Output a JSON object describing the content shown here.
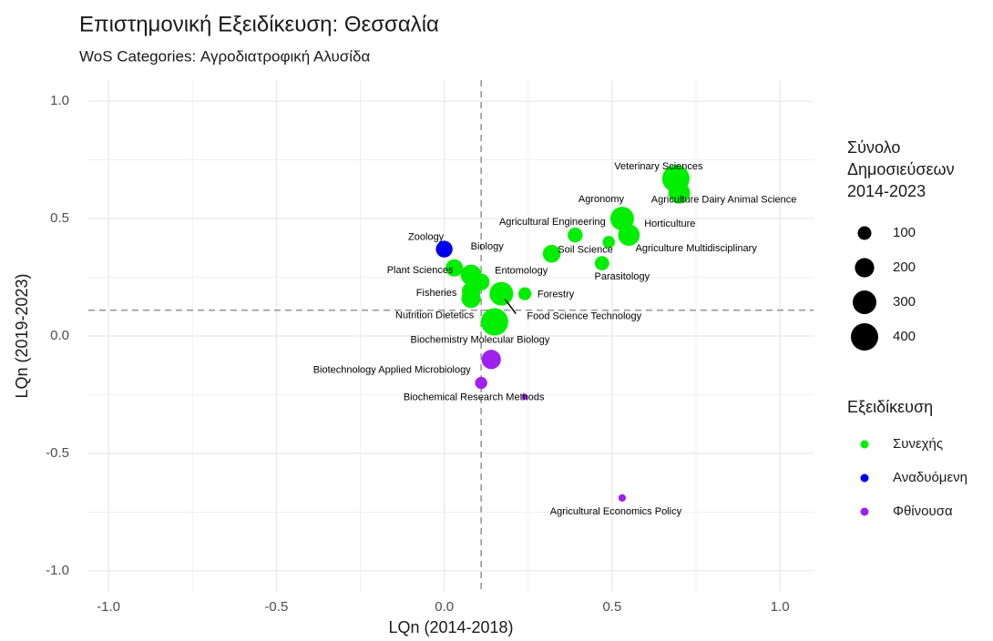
{
  "chart_data": {
    "type": "bubble",
    "title": "Επιστημονική Εξειδίκευση: Θεσσαλία",
    "subtitle": "WoS Categories: Αγροδιατροφική Αλυσίδα",
    "x_label": "LQn (2014-2018)",
    "y_label": "LQn (2019-2023)",
    "xlim": [
      -1.06,
      1.1
    ],
    "ylim": [
      -1.09,
      1.09
    ],
    "xticks": [
      {
        "value": -1,
        "label": "-1.0"
      },
      -0.5,
      {
        "value": 0,
        "label": "0.0"
      },
      0.5,
      {
        "value": 1,
        "label": "1.0"
      }
    ],
    "yticks": [
      {
        "value": -1,
        "label": "-1.0"
      },
      -0.5,
      {
        "value": 0,
        "label": "0.0"
      },
      0.5,
      {
        "value": 1,
        "label": "1.0"
      }
    ],
    "xminor": [
      -0.75,
      -0.25,
      0.25,
      0.75
    ],
    "yminor": [
      -0.75,
      -0.25,
      0.25,
      0.75
    ],
    "grid": true,
    "vline": 0.11,
    "hline": 0.11,
    "series": [
      {
        "name": "Συνεχής",
        "color": "#00ee00",
        "x": [
          0.69,
          0.7,
          0.53,
          0.55,
          0.39,
          0.49,
          0.32,
          0.47,
          0.03,
          0.08,
          0.11,
          0.08,
          0.08,
          0.24,
          0.17,
          0.15
        ],
        "y": [
          0.67,
          0.61,
          0.5,
          0.43,
          0.43,
          0.4,
          0.35,
          0.31,
          0.29,
          0.26,
          0.23,
          0.19,
          0.16,
          0.18,
          0.18,
          0.06
        ],
        "size": [
          400,
          250,
          300,
          250,
          120,
          80,
          170,
          110,
          160,
          230,
          150,
          180,
          200,
          90,
          300,
          400
        ],
        "labels": [
          "Veterinary Sciences",
          "Agriculture Dairy Animal Science",
          "Agronomy",
          "Horticulture",
          "Agricultural Engineering",
          "Agriculture Multidisciplinary",
          "Soil Science",
          "Parasitology",
          "Biology",
          "Plant Sciences",
          "Entomology",
          "Fisheries",
          "Nutrition Dietetics",
          "Forestry",
          "Food Science Technology",
          "Biochemistry Molecular Biology"
        ]
      },
      {
        "name": "Αναδυόμενη",
        "color": "#0000ee",
        "x": [
          0.0
        ],
        "y": [
          0.37
        ],
        "size": [
          150
        ],
        "labels": [
          "Zoology"
        ]
      },
      {
        "name": "Φθίνουσα",
        "color": "#a020f0",
        "x": [
          0.14,
          0.11,
          0.24,
          0.53
        ],
        "y": [
          -0.1,
          -0.2,
          -0.26,
          -0.69
        ],
        "size": [
          200,
          80,
          20,
          30
        ],
        "labels": [
          "Biotechnology Applied Microbiology",
          "Biochemical Research Methods",
          null,
          "Agricultural Economics Policy"
        ]
      }
    ],
    "size_legend_title": [
      "Σύνολο",
      "Δημοσιεύσεων",
      "2014-2023"
    ],
    "size_legend_values": [
      100,
      200,
      300,
      400
    ],
    "color_legend_title": "Εξειδίκευση"
  }
}
